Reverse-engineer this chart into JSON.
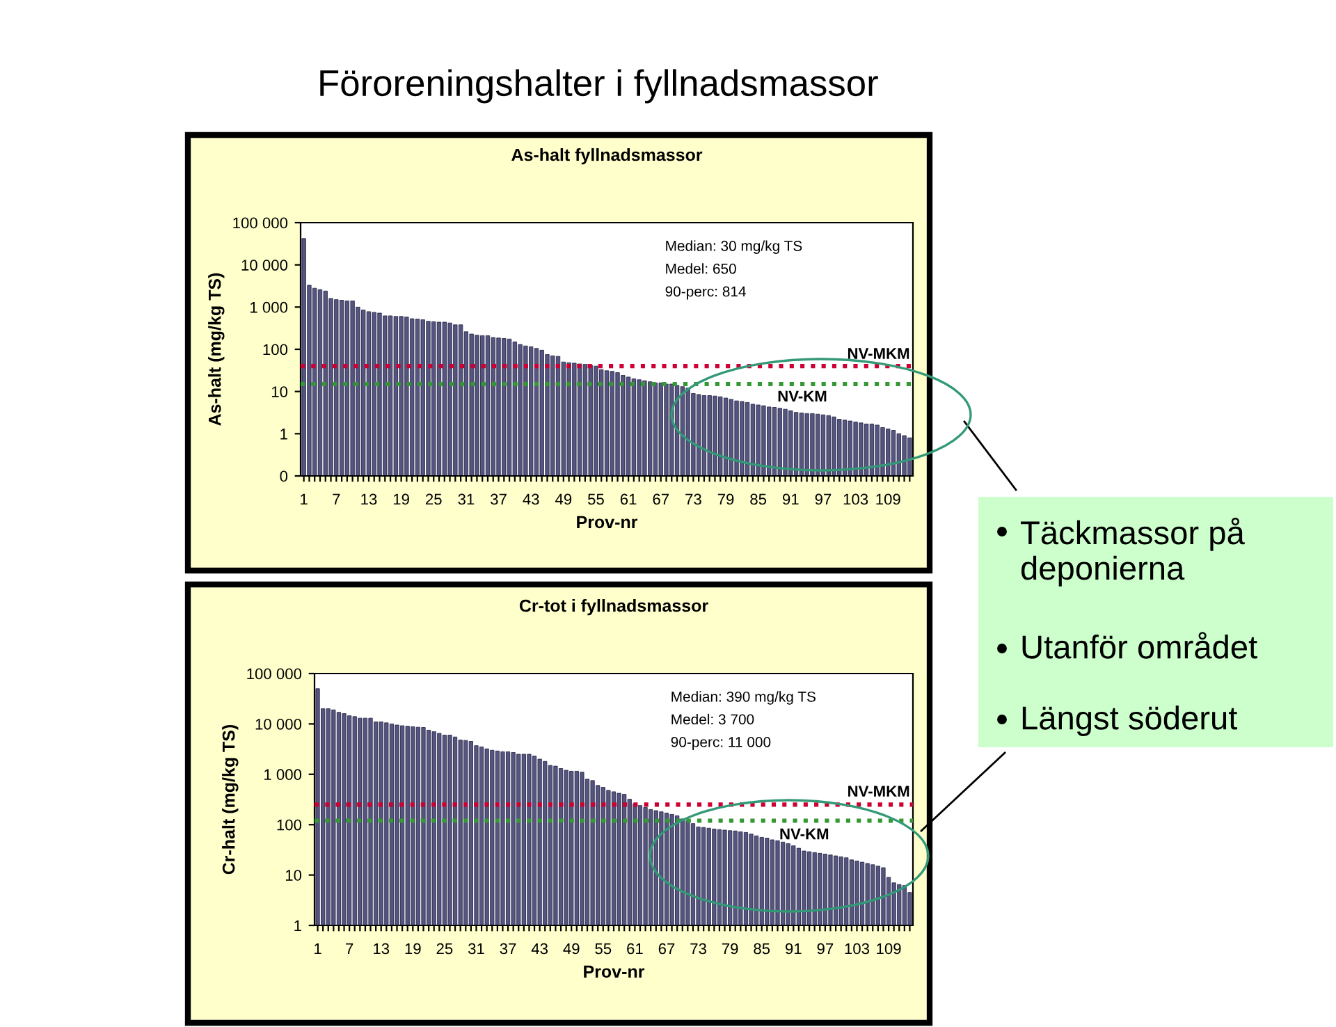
{
  "chart_data": [
    {
      "type": "bar",
      "title": "As-halt fyllnadsmassor",
      "xlabel": "Prov-nr",
      "ylabel": "As-halt (mg/kg TS)",
      "categories": [
        "1",
        null,
        null,
        null,
        null,
        null,
        "7",
        null,
        null,
        null,
        null,
        null,
        "13",
        null,
        null,
        null,
        null,
        null,
        "19",
        null,
        null,
        null,
        null,
        null,
        "25",
        null,
        null,
        null,
        null,
        null,
        "31",
        null,
        null,
        null,
        null,
        null,
        "37",
        null,
        null,
        null,
        null,
        null,
        "43",
        null,
        null,
        null,
        null,
        null,
        "49",
        null,
        null,
        null,
        null,
        null,
        "55",
        null,
        null,
        null,
        null,
        null,
        "61",
        null,
        null,
        null,
        null,
        null,
        "67",
        null,
        null,
        null,
        null,
        null,
        "73",
        null,
        null,
        null,
        null,
        null,
        "79",
        null,
        null,
        null,
        null,
        null,
        "85",
        null,
        null,
        null,
        null,
        null,
        "91",
        null,
        null,
        null,
        null,
        null,
        "97",
        null,
        null,
        null,
        null,
        null,
        "103",
        null,
        null,
        null,
        null,
        null,
        "109",
        null,
        null,
        null,
        null
      ],
      "values": [
        42000,
        3300,
        2800,
        2600,
        2400,
        1600,
        1500,
        1450,
        1400,
        1400,
        1000,
        850,
        780,
        750,
        720,
        620,
        620,
        600,
        600,
        580,
        530,
        520,
        500,
        460,
        450,
        440,
        440,
        420,
        380,
        380,
        260,
        230,
        215,
        210,
        210,
        190,
        185,
        180,
        175,
        150,
        130,
        120,
        115,
        105,
        95,
        75,
        70,
        68,
        50,
        48,
        47,
        45,
        44,
        42,
        40,
        33,
        31,
        30,
        28,
        24,
        22,
        20,
        19,
        18,
        17,
        16,
        16,
        15,
        15,
        14,
        13,
        12,
        9,
        8.5,
        8,
        8,
        7.8,
        7.5,
        7,
        6.5,
        6,
        5.8,
        5.5,
        5,
        4.8,
        4.6,
        4.3,
        4.2,
        4,
        3.8,
        3.5,
        3.2,
        3.1,
        3,
        3,
        2.9,
        2.8,
        2.7,
        2.5,
        2.2,
        2.1,
        2,
        1.9,
        1.8,
        1.7,
        1.7,
        1.6,
        1.4,
        1.3,
        1.2,
        1.0,
        0.9,
        0.8
      ],
      "color": "#55557f",
      "log": true,
      "ylim": [
        0.1,
        100000
      ],
      "yticks": [
        {
          "value": 0.1,
          "label": "0"
        },
        1,
        10,
        100,
        {
          "value": 1000,
          "label": "1 000"
        },
        {
          "value": 10000,
          "label": "10 000"
        },
        {
          "value": 100000,
          "label": "100 000"
        }
      ],
      "ref_lines": [
        {
          "axis": "y",
          "value": 40,
          "label": "NV-MKM",
          "color": "#cc0033",
          "line_style": "dotted"
        },
        {
          "axis": "y",
          "value": 15,
          "label": "NV-KM",
          "color": "#339933",
          "line_style": "dotted"
        }
      ],
      "annotations": [
        "Median: 30 mg/kg TS",
        "Medel: 650",
        "90-perc: 814"
      ]
    },
    {
      "type": "bar",
      "title": "Cr-tot i fyllnadsmassor",
      "xlabel": "Prov-nr",
      "ylabel": "Cr-halt (mg/kg TS)",
      "categories": [
        "1",
        null,
        null,
        null,
        null,
        null,
        "7",
        null,
        null,
        null,
        null,
        null,
        "13",
        null,
        null,
        null,
        null,
        null,
        "19",
        null,
        null,
        null,
        null,
        null,
        "25",
        null,
        null,
        null,
        null,
        null,
        "31",
        null,
        null,
        null,
        null,
        null,
        "37",
        null,
        null,
        null,
        null,
        null,
        "43",
        null,
        null,
        null,
        null,
        null,
        "49",
        null,
        null,
        null,
        null,
        null,
        "55",
        null,
        null,
        null,
        null,
        null,
        "61",
        null,
        null,
        null,
        null,
        null,
        "67",
        null,
        null,
        null,
        null,
        null,
        "73",
        null,
        null,
        null,
        null,
        null,
        "79",
        null,
        null,
        null,
        null,
        null,
        "85",
        null,
        null,
        null,
        null,
        null,
        "91",
        null,
        null,
        null,
        null,
        null,
        "97",
        null,
        null,
        null,
        null,
        null,
        "103",
        null,
        null,
        null,
        null,
        null,
        "109",
        null,
        null,
        null,
        null
      ],
      "values": [
        50000,
        20000,
        20000,
        19000,
        17000,
        16000,
        14500,
        14000,
        13000,
        13000,
        13000,
        11000,
        11000,
        10500,
        10000,
        9500,
        9200,
        9000,
        8800,
        8600,
        8500,
        7500,
        7000,
        6500,
        6000,
        6000,
        5500,
        4800,
        4700,
        4500,
        3700,
        3500,
        3200,
        3000,
        2900,
        2800,
        2800,
        2700,
        2500,
        2500,
        2500,
        2300,
        2000,
        1800,
        1500,
        1450,
        1300,
        1200,
        1150,
        1150,
        1100,
        800,
        750,
        600,
        550,
        480,
        450,
        420,
        400,
        320,
        260,
        240,
        220,
        200,
        190,
        180,
        170,
        160,
        150,
        130,
        120,
        105,
        90,
        88,
        85,
        82,
        80,
        78,
        76,
        75,
        72,
        70,
        65,
        60,
        56,
        54,
        50,
        48,
        45,
        42,
        38,
        34,
        30,
        29,
        28,
        27,
        26,
        25,
        24,
        23,
        22,
        20,
        19,
        18,
        17,
        16,
        15,
        14,
        9,
        7,
        6.5,
        6.2,
        4.5
      ],
      "color": "#55557f",
      "log": true,
      "ylim": [
        1,
        100000
      ],
      "yticks": [
        1,
        10,
        100,
        {
          "value": 1000,
          "label": "1 000"
        },
        {
          "value": 10000,
          "label": "10 000"
        },
        {
          "value": 100000,
          "label": "100 000"
        }
      ],
      "ref_lines": [
        {
          "axis": "y",
          "value": 250,
          "label": "NV-MKM",
          "color": "#cc0033",
          "line_style": "dotted"
        },
        {
          "axis": "y",
          "value": 120,
          "label": "NV-KM",
          "color": "#339933",
          "line_style": "dotted"
        }
      ],
      "annotations": [
        "Median: 390 mg/kg TS",
        "Medel: 3 700",
        "90-perc: 11 000"
      ]
    },
    {
      "type": "other",
      "title": "Föroreningshalter i fyllnadsmassor",
      "annotations": [
        "Täckmassor på deponierna",
        "Utanför området",
        "Längst söderut"
      ]
    }
  ]
}
